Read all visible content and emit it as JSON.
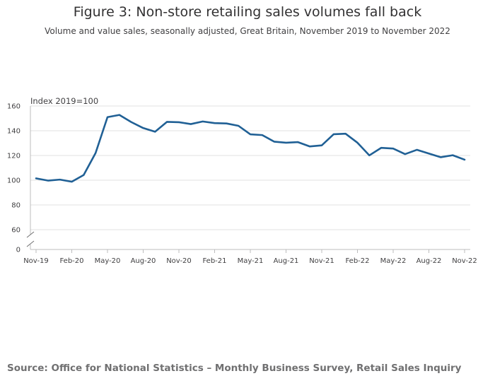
{
  "title": "Figure 3: Non-store retailing sales volumes fall back",
  "subtitle": "Volume and value sales, seasonally adjusted, Great Britain, November 2019 to November 2022",
  "source": "Source: Office for National Statistics – Monthly Business Survey, Retail Sales Inquiry",
  "chart_data": {
    "type": "line",
    "title": "Figure 3: Non-store retailing sales volumes fall back",
    "ylabel": "Index 2019=100",
    "xlabel": "",
    "ylim": [
      0,
      160
    ],
    "y_axis_break": [
      0,
      60
    ],
    "yticks": [
      0,
      60,
      80,
      100,
      120,
      140,
      160
    ],
    "xtick_labels": [
      "Nov-19",
      "Feb-20",
      "May-20",
      "Aug-20",
      "Nov-20",
      "Feb-21",
      "May-21",
      "Aug-21",
      "Nov-21",
      "Feb-22",
      "May-22",
      "Aug-22",
      "Nov-22"
    ],
    "grid": true,
    "line_color": "#206095",
    "x": [
      "Nov-19",
      "Dec-19",
      "Jan-20",
      "Feb-20",
      "Mar-20",
      "Apr-20",
      "May-20",
      "Jun-20",
      "Jul-20",
      "Aug-20",
      "Sep-20",
      "Oct-20",
      "Nov-20",
      "Dec-20",
      "Jan-21",
      "Feb-21",
      "Mar-21",
      "Apr-21",
      "May-21",
      "Jun-21",
      "Jul-21",
      "Aug-21",
      "Sep-21",
      "Oct-21",
      "Nov-21",
      "Dec-21",
      "Jan-22",
      "Feb-22",
      "Mar-22",
      "Apr-22",
      "May-22",
      "Jun-22",
      "Jul-22",
      "Aug-22",
      "Sep-22",
      "Oct-22",
      "Nov-22"
    ],
    "values": [
      101.5,
      99.7,
      100.5,
      98.8,
      104.2,
      122.0,
      151.0,
      152.8,
      147.0,
      142.2,
      139.2,
      147.2,
      146.9,
      145.4,
      147.5,
      146.2,
      145.9,
      144.0,
      137.1,
      136.5,
      131.2,
      130.3,
      130.8,
      127.3,
      128.2,
      137.2,
      137.6,
      130.3,
      120.1,
      126.2,
      125.6,
      121.1,
      124.6,
      121.6,
      118.6,
      120.2,
      116.6
    ]
  }
}
